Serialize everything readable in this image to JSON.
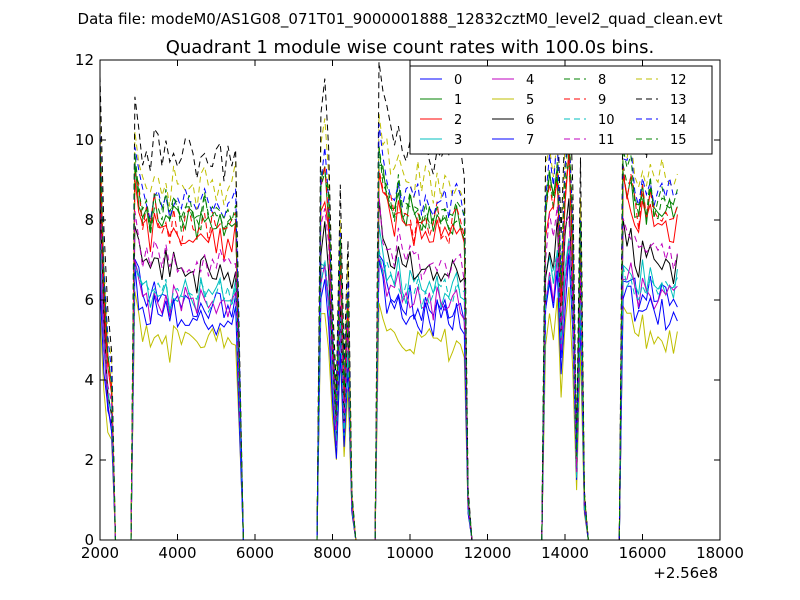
{
  "figure": {
    "suptitle": "Data file: modeM0/AS1G08_071T01_9000001888_12832cztM0_level2_quad_clean.evt"
  },
  "chart_data": {
    "type": "line",
    "title": "Quadrant 1 module wise count rates with 100.0s bins.",
    "xlabel": "",
    "ylabel": "",
    "xlim": [
      2000,
      18000
    ],
    "ylim": [
      0,
      12
    ],
    "x_offset_label": "+2.56e8",
    "x_ticks": [
      2000,
      4000,
      6000,
      8000,
      10000,
      12000,
      14000,
      16000,
      18000
    ],
    "x_tick_labels": [
      "2000",
      "4000",
      "6000",
      "8000",
      "10000",
      "12000",
      "14000",
      "16000",
      "18000"
    ],
    "y_ticks": [
      0,
      2,
      4,
      6,
      8,
      10,
      12
    ],
    "y_tick_labels": [
      "0",
      "2",
      "4",
      "6",
      "8",
      "10",
      "12"
    ],
    "grid": false,
    "legend_position": "top-right",
    "legend_columns": 4,
    "x": [
      2000,
      2100,
      2200,
      2300,
      2400,
      2500,
      2600,
      2700,
      2800,
      2900,
      3000,
      3100,
      3200,
      3300,
      3400,
      3500,
      3600,
      3700,
      3800,
      3900,
      4000,
      4100,
      4200,
      4300,
      4400,
      4500,
      4600,
      4700,
      4800,
      4900,
      5000,
      5100,
      5200,
      5300,
      5400,
      5500,
      5600,
      5700,
      5800,
      7500,
      7600,
      7700,
      7800,
      7900,
      8000,
      8100,
      8200,
      8300,
      8400,
      8500,
      8600,
      8700,
      9000,
      9100,
      9200,
      9300,
      9400,
      9500,
      9600,
      9700,
      9800,
      9900,
      10000,
      10100,
      10200,
      10300,
      10400,
      10500,
      10600,
      10700,
      10800,
      10900,
      11000,
      11100,
      11200,
      11300,
      11400,
      11500,
      11600,
      11700,
      13300,
      13400,
      13500,
      13600,
      13700,
      13800,
      13900,
      14000,
      14100,
      14200,
      14300,
      14400,
      14500,
      14600,
      14700,
      14800,
      15300,
      15400,
      15500,
      15600,
      15700,
      15800,
      15900,
      16000,
      16100,
      16200,
      16300,
      16400,
      16500,
      16600,
      16700,
      16800,
      16900
    ],
    "profile": [
      0.95,
      0.62,
      0.45,
      0.38,
      0.0,
      0.0,
      0.0,
      0.0,
      0.0,
      0.92,
      0.85,
      0.78,
      0.8,
      0.76,
      0.82,
      0.79,
      0.77,
      0.81,
      0.75,
      0.8,
      0.78,
      0.76,
      0.79,
      0.8,
      0.77,
      0.75,
      0.78,
      0.8,
      0.76,
      0.78,
      0.77,
      0.79,
      0.75,
      0.78,
      0.76,
      0.8,
      0.4,
      0.0,
      0.0,
      0.0,
      0.0,
      0.85,
      0.9,
      0.8,
      0.5,
      0.3,
      0.7,
      0.35,
      0.6,
      0.1,
      0.0,
      0.0,
      0.0,
      0.0,
      0.95,
      0.88,
      0.85,
      0.82,
      0.8,
      0.84,
      0.79,
      0.78,
      0.81,
      0.77,
      0.8,
      0.76,
      0.79,
      0.78,
      0.75,
      0.8,
      0.77,
      0.79,
      0.76,
      0.78,
      0.8,
      0.77,
      0.75,
      0.1,
      0.0,
      0.0,
      0.0,
      0.0,
      0.8,
      0.88,
      0.82,
      0.9,
      0.6,
      0.85,
      0.95,
      0.7,
      0.2,
      0.75,
      0.1,
      0.0,
      0.0,
      0.0,
      0.0,
      0.0,
      0.9,
      0.85,
      0.88,
      0.82,
      0.8,
      0.84,
      0.79,
      0.83,
      0.8,
      0.78,
      0.82,
      0.79,
      0.8,
      0.78,
      0.81
    ],
    "series": [
      {
        "name": "0",
        "color": "#0000ff",
        "dash": "solid",
        "level": 6.0
      },
      {
        "name": "1",
        "color": "#008000",
        "dash": "solid",
        "level": 8.1
      },
      {
        "name": "2",
        "color": "#ff0000",
        "dash": "solid",
        "level": 7.7
      },
      {
        "name": "3",
        "color": "#00bfbf",
        "dash": "solid",
        "level": 6.3
      },
      {
        "name": "4",
        "color": "#bf00bf",
        "dash": "solid",
        "level": 6.0
      },
      {
        "name": "5",
        "color": "#bfbf00",
        "dash": "solid",
        "level": 5.0
      },
      {
        "name": "6",
        "color": "#000000",
        "dash": "solid",
        "level": 6.8
      },
      {
        "name": "7",
        "color": "#0000ff",
        "dash": "solid",
        "level": 5.6
      },
      {
        "name": "8",
        "color": "#008000",
        "dash": "dashed",
        "level": 8.2
      },
      {
        "name": "9",
        "color": "#ff0000",
        "dash": "dashed",
        "level": 8.0
      },
      {
        "name": "10",
        "color": "#00bfbf",
        "dash": "dashed",
        "level": 6.2
      },
      {
        "name": "11",
        "color": "#bf00bf",
        "dash": "dashed",
        "level": 7.0
      },
      {
        "name": "12",
        "color": "#bfbf00",
        "dash": "dashed",
        "level": 9.0
      },
      {
        "name": "13",
        "color": "#000000",
        "dash": "dashed",
        "level": 9.8
      },
      {
        "name": "14",
        "color": "#0000ff",
        "dash": "dashed",
        "level": 8.6
      },
      {
        "name": "15",
        "color": "#008000",
        "dash": "dashed",
        "level": 8.3
      }
    ]
  }
}
